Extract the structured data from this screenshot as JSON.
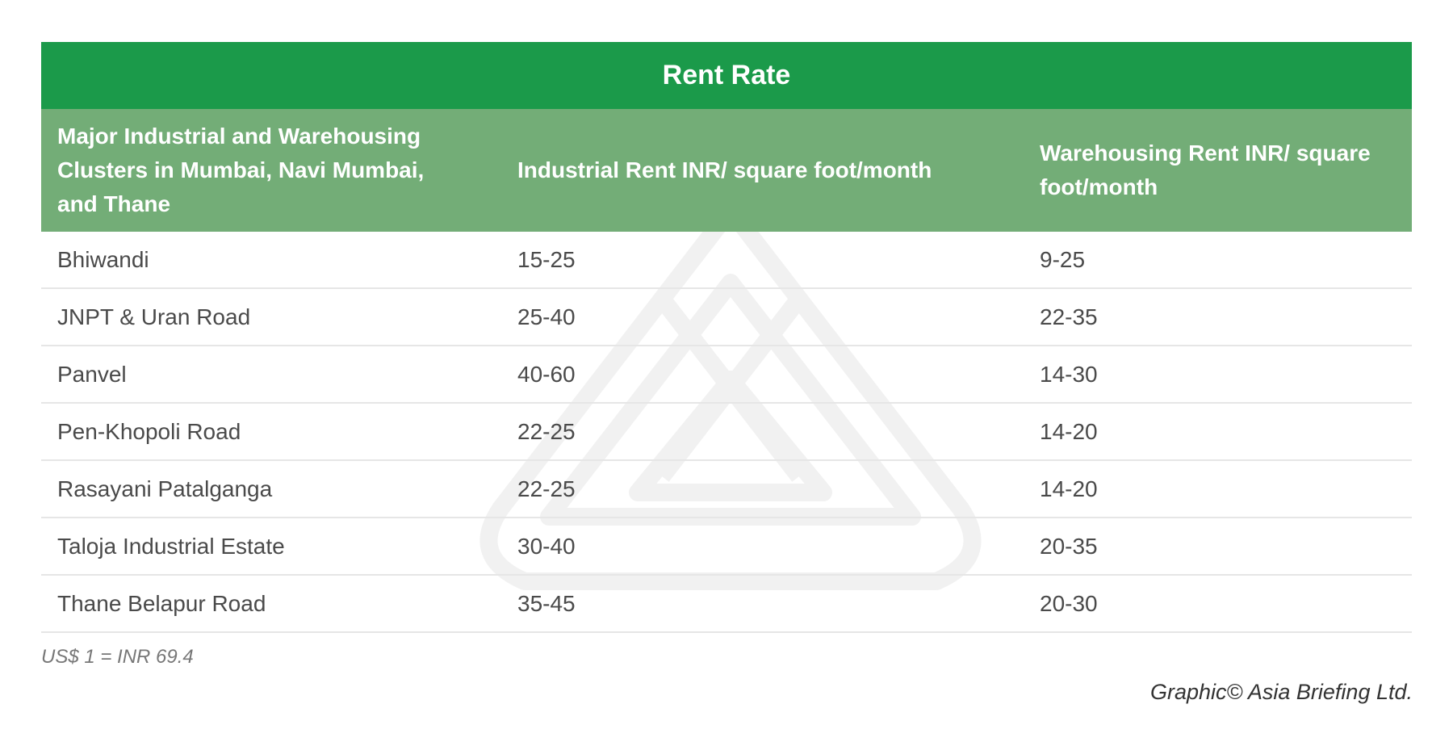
{
  "title": "Rent Rate",
  "headers": [
    "Major Industrial and Warehousing Clusters in Mumbai, Navi Mumbai, and Thane",
    "Industrial Rent INR/ square foot/month",
    "Warehousing Rent INR/ square foot/month"
  ],
  "rows": [
    {
      "cluster": "Bhiwandi",
      "industrial": "15-25",
      "warehousing": "9-25"
    },
    {
      "cluster": "JNPT & Uran Road",
      "industrial": "25-40",
      "warehousing": "22-35"
    },
    {
      "cluster": "Panvel",
      "industrial": "40-60",
      "warehousing": "14-30"
    },
    {
      "cluster": "Pen-Khopoli Road",
      "industrial": "22-25",
      "warehousing": "14-20"
    },
    {
      "cluster": "Rasayani Patalganga",
      "industrial": "22-25",
      "warehousing": "14-20"
    },
    {
      "cluster": "Taloja Industrial Estate",
      "industrial": "30-40",
      "warehousing": "20-35"
    },
    {
      "cluster": "Thane Belapur Road",
      "industrial": "35-45",
      "warehousing": "20-30"
    }
  ],
  "note": "US$ 1 = INR 69.4",
  "credit": "Graphic© Asia Briefing Ltd.",
  "colors": {
    "title_band": "#1b9a4a",
    "header_band": "#73ad77"
  }
}
